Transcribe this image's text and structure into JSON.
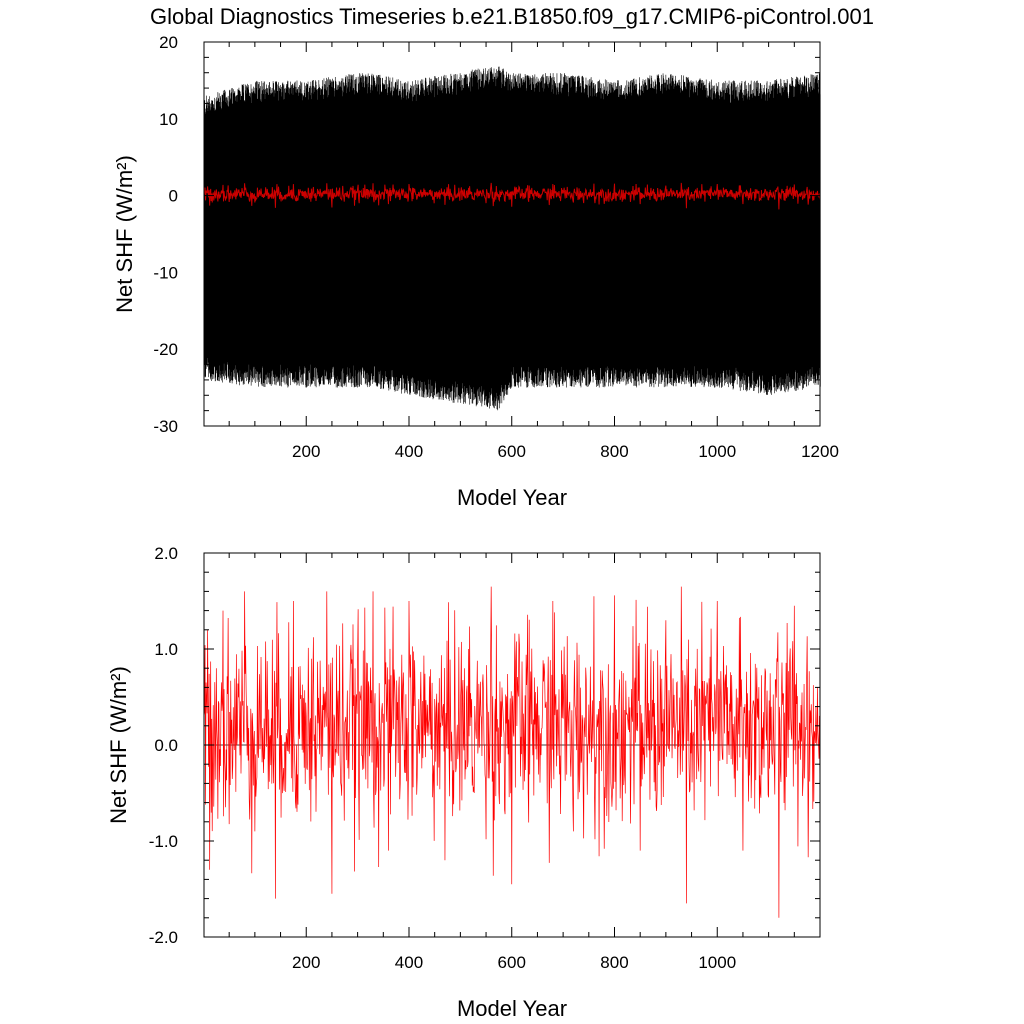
{
  "title": "Global Diagnostics Timeseries b.e21.B1850.f09_g17.CMIP6-piControl.001",
  "chart_data": [
    {
      "type": "line",
      "xlabel": "Model Year",
      "ylabel": "Net SHF (W/m²)",
      "xlim": [
        1,
        1200
      ],
      "ylim": [
        -30,
        20
      ],
      "xticks": [
        200,
        400,
        600,
        800,
        1000,
        1200
      ],
      "yticks": [
        -30,
        -20,
        -10,
        0,
        10,
        20
      ],
      "ytick_labels": [
        "-30",
        "-20",
        "-10",
        "0",
        "10",
        "20"
      ],
      "grid": false,
      "series": [
        {
          "color": "#000000",
          "description_values": "monthly values oscillating between about -27 and 18",
          "envelope_upper": [
            12,
            14,
            14,
            15,
            15,
            14,
            16,
            15,
            15,
            14,
            15,
            14,
            14,
            15
          ],
          "envelope_lower": [
            -23,
            -24,
            -24,
            -24,
            -24,
            -25,
            -27,
            -24,
            -24,
            -24,
            -24,
            -24,
            -25,
            -24
          ],
          "envelope_x": [
            1,
            100,
            200,
            300,
            330,
            400,
            575,
            600,
            700,
            800,
            900,
            1000,
            1100,
            1200
          ]
        },
        {
          "color": "#cc0000",
          "description_values": "annual mean near 0, range about -1.8 to 1.6"
        }
      ]
    },
    {
      "type": "line",
      "xlabel": "Model Year",
      "ylabel": "Net SHF (W/m²)",
      "xlim": [
        1,
        1200
      ],
      "ylim": [
        -2.0,
        2.0
      ],
      "xticks": [
        200,
        400,
        600,
        800,
        1000
      ],
      "yticks": [
        -2.0,
        -1.0,
        0.0,
        1.0,
        2.0
      ],
      "ytick_labels": [
        "-2.0",
        "-1.0",
        "0.0",
        "1.0",
        "2.0"
      ],
      "zero_line": true,
      "grid": false,
      "series": [
        {
          "color": "#ff0000",
          "x": [
            1,
            12,
            25,
            38,
            80,
            100,
            140,
            175,
            240,
            250,
            330,
            360,
            400,
            470,
            560,
            600,
            680,
            720,
            760,
            850,
            900,
            940,
            1000,
            1050,
            1120,
            1150,
            1200
          ],
          "y": [
            0.3,
            -1.3,
            0.8,
            1.4,
            1.6,
            -0.9,
            -1.6,
            1.5,
            1.6,
            -1.55,
            1.6,
            -1.1,
            1.5,
            -1.2,
            1.65,
            -1.45,
            1.5,
            -0.9,
            1.55,
            -1.1,
            1.3,
            -1.65,
            1.5,
            -1.1,
            -1.8,
            1.45,
            -0.6
          ]
        }
      ]
    }
  ]
}
